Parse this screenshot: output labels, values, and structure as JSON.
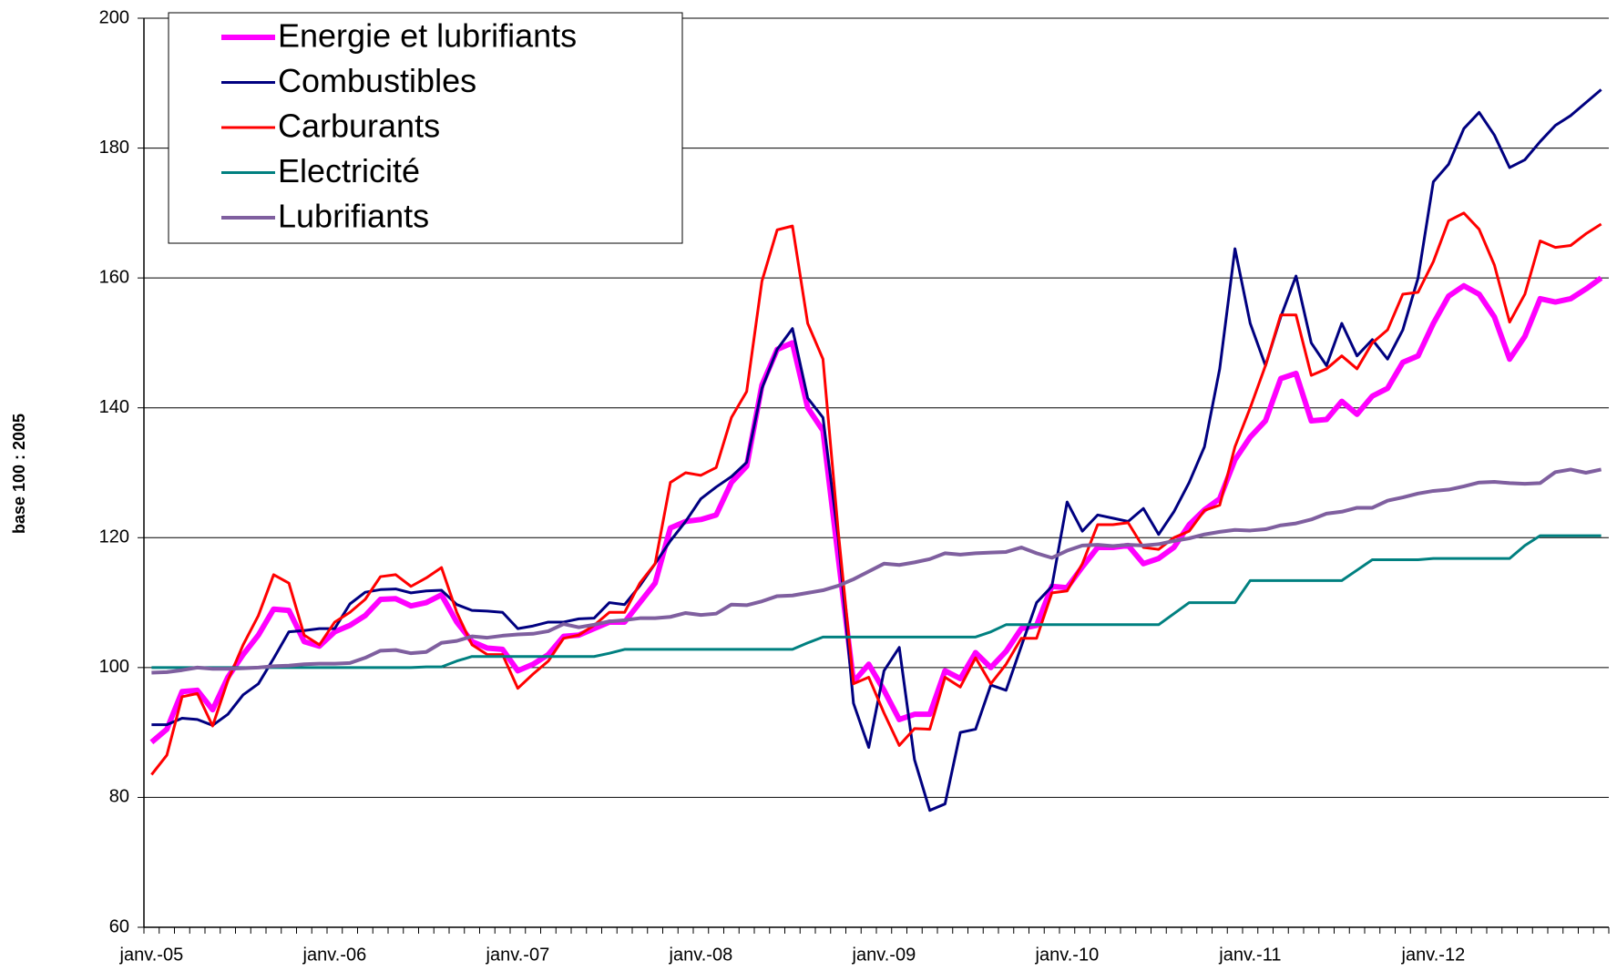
{
  "chart_data": {
    "type": "line",
    "y_label": "base 100 : 2005",
    "categories": [
      "janv.-05",
      null,
      null,
      null,
      null,
      null,
      null,
      null,
      null,
      null,
      null,
      null,
      "janv.-06",
      null,
      null,
      null,
      null,
      null,
      null,
      null,
      null,
      null,
      null,
      null,
      "janv.-07",
      null,
      null,
      null,
      null,
      null,
      null,
      null,
      null,
      null,
      null,
      null,
      "janv.-08",
      null,
      null,
      null,
      null,
      null,
      null,
      null,
      null,
      null,
      null,
      null,
      "janv.-09",
      null,
      null,
      null,
      null,
      null,
      null,
      null,
      null,
      null,
      null,
      null,
      "janv.-10",
      null,
      null,
      null,
      null,
      null,
      null,
      null,
      null,
      null,
      null,
      null,
      "janv.-11",
      null,
      null,
      null,
      null,
      null,
      null,
      null,
      null,
      null,
      null,
      null,
      "janv.-12",
      null,
      null,
      null,
      null,
      null,
      null,
      null,
      null,
      null,
      null,
      null
    ],
    "ylim": [
      60,
      200
    ],
    "yticks": [
      60,
      80,
      100,
      120,
      140,
      160,
      180,
      200
    ],
    "grid": true,
    "legend": "upper left",
    "series": [
      {
        "name": "Energie et lubrifiants",
        "color": "#ff00ff",
        "line_width": 6,
        "values": [
          88.5,
          90.5,
          96.3,
          96.5,
          93.5,
          98.5,
          102,
          105,
          109,
          108.8,
          104,
          103.3,
          105.5,
          106.5,
          108,
          110.5,
          110.6,
          109.5,
          110,
          111.2,
          107,
          104,
          103,
          102.8,
          99.5,
          100.5,
          102,
          104.8,
          105,
          106,
          107,
          107,
          110,
          113,
          121.5,
          122.5,
          122.8,
          123.5,
          128.5,
          131,
          143.5,
          149,
          150,
          140,
          136.5,
          117,
          97.8,
          100.5,
          96.5,
          92,
          92.8,
          92.8,
          99.5,
          98.3,
          102.3,
          100,
          102.5,
          106,
          106.5,
          112.5,
          112.3,
          115.5,
          118.5,
          118.5,
          118.8,
          116,
          116.8,
          118.5,
          122,
          124.3,
          126,
          132,
          135.5,
          138,
          144.5,
          145.3,
          138,
          138.2,
          141,
          139,
          141.8,
          143,
          147,
          148,
          153,
          157.2,
          158.8,
          157.5,
          154,
          147.5,
          151,
          156.8,
          156.3,
          156.8,
          158.3,
          160
        ]
      },
      {
        "name": "Combustibles",
        "color": "#000080",
        "line_width": 3,
        "values": [
          91.2,
          91.2,
          92.2,
          92,
          91.1,
          92.8,
          95.8,
          97.5,
          101.4,
          105.5,
          105.7,
          106,
          106,
          109.8,
          111.6,
          112,
          112.1,
          111.5,
          111.8,
          111.9,
          109.7,
          108.8,
          108.7,
          108.5,
          106,
          106.4,
          107,
          107,
          107.5,
          107.6,
          110,
          109.7,
          112.6,
          116,
          119.5,
          122.5,
          126,
          127.8,
          129.4,
          131.6,
          143,
          149,
          152.2,
          141.5,
          138.5,
          120,
          94.5,
          87.7,
          99.5,
          103.1,
          85.8,
          78,
          79,
          90,
          90.5,
          97.3,
          96.5,
          103.3,
          110,
          112.5,
          125.5,
          121,
          123.5,
          123,
          122.5,
          124.5,
          120.5,
          124,
          128.5,
          134,
          146,
          164.5,
          153,
          146.5,
          154,
          160.3,
          150,
          146.5,
          153,
          148,
          150.5,
          147.5,
          152,
          160,
          174.8,
          177.5,
          183,
          185.5,
          182,
          177,
          178.2,
          181,
          183.5,
          185,
          187,
          189
        ]
      },
      {
        "name": "Carburants",
        "color": "#ff0000",
        "line_width": 3,
        "values": [
          83.5,
          86.5,
          95.5,
          96,
          91,
          98,
          103.5,
          108,
          114.3,
          113,
          105,
          103.5,
          107,
          108.5,
          110.5,
          114,
          114.3,
          112.5,
          113.8,
          115.4,
          108.5,
          103.5,
          102,
          102,
          96.8,
          99,
          101,
          104.5,
          105,
          106.5,
          108.5,
          108.5,
          113,
          116,
          128.5,
          130,
          129.6,
          130.8,
          138.5,
          142.5,
          159.5,
          167.4,
          168,
          153,
          147.5,
          121,
          97.5,
          98.5,
          93,
          88,
          90.6,
          90.5,
          98.5,
          97,
          101.5,
          97.5,
          100.5,
          104.5,
          104.5,
          111.5,
          111.8,
          116,
          122,
          122,
          122.3,
          118.5,
          118.2,
          120,
          121,
          124.2,
          125,
          134,
          140,
          146.5,
          154.3,
          154.3,
          145,
          146,
          148,
          146,
          150,
          152,
          157.5,
          157.8,
          162.5,
          168.8,
          170,
          167.5,
          162,
          153.2,
          157.5,
          165.7,
          164.7,
          165,
          166.8,
          168.3
        ]
      },
      {
        "name": "Electricité",
        "color": "#008080",
        "line_width": 3,
        "values": [
          100,
          100,
          100,
          100,
          100,
          100,
          100,
          100,
          100,
          100,
          100,
          100,
          100,
          100,
          100,
          100,
          100,
          100,
          100.1,
          100.1,
          101,
          101.7,
          101.7,
          101.7,
          101.7,
          101.7,
          101.7,
          101.7,
          101.7,
          101.7,
          102.2,
          102.8,
          102.8,
          102.8,
          102.8,
          102.8,
          102.8,
          102.8,
          102.8,
          102.8,
          102.8,
          102.8,
          102.8,
          103.8,
          104.7,
          104.7,
          104.7,
          104.7,
          104.7,
          104.7,
          104.7,
          104.7,
          104.7,
          104.7,
          104.7,
          105.5,
          106.6,
          106.6,
          106.6,
          106.6,
          106.6,
          106.6,
          106.6,
          106.6,
          106.6,
          106.6,
          106.6,
          108.3,
          110,
          110,
          110,
          110,
          113.4,
          113.4,
          113.4,
          113.4,
          113.4,
          113.4,
          113.4,
          115,
          116.6,
          116.6,
          116.6,
          116.6,
          116.8,
          116.8,
          116.8,
          116.8,
          116.8,
          116.8,
          118.8,
          120.3,
          120.3,
          120.3,
          120.3,
          120.3
        ]
      },
      {
        "name": "Lubrifiants",
        "color": "#7f5f9f",
        "line_width": 4,
        "values": [
          99.2,
          99.3,
          99.6,
          100,
          99.8,
          99.8,
          99.9,
          100,
          100.2,
          100.3,
          100.5,
          100.6,
          100.6,
          100.7,
          101.5,
          102.6,
          102.7,
          102.2,
          102.4,
          103.8,
          104.1,
          104.8,
          104.6,
          104.9,
          105.1,
          105.2,
          105.6,
          106.7,
          106.2,
          106.6,
          107.1,
          107.3,
          107.6,
          107.6,
          107.8,
          108.4,
          108.1,
          108.3,
          109.7,
          109.6,
          110.2,
          111,
          111.1,
          111.5,
          111.9,
          112.6,
          113.6,
          114.8,
          116,
          115.8,
          116.2,
          116.7,
          117.6,
          117.4,
          117.6,
          117.7,
          117.8,
          118.5,
          117.6,
          116.9,
          118,
          118.8,
          118.9,
          118.7,
          118.9,
          118.8,
          119,
          119.5,
          119.9,
          120.5,
          120.9,
          121.2,
          121.1,
          121.3,
          121.9,
          122.2,
          122.8,
          123.7,
          124,
          124.6,
          124.6,
          125.7,
          126.2,
          126.8,
          127.2,
          127.4,
          127.9,
          128.5,
          128.6,
          128.4,
          128.3,
          128.4,
          130.1,
          130.5,
          130,
          130.5
        ]
      }
    ]
  }
}
